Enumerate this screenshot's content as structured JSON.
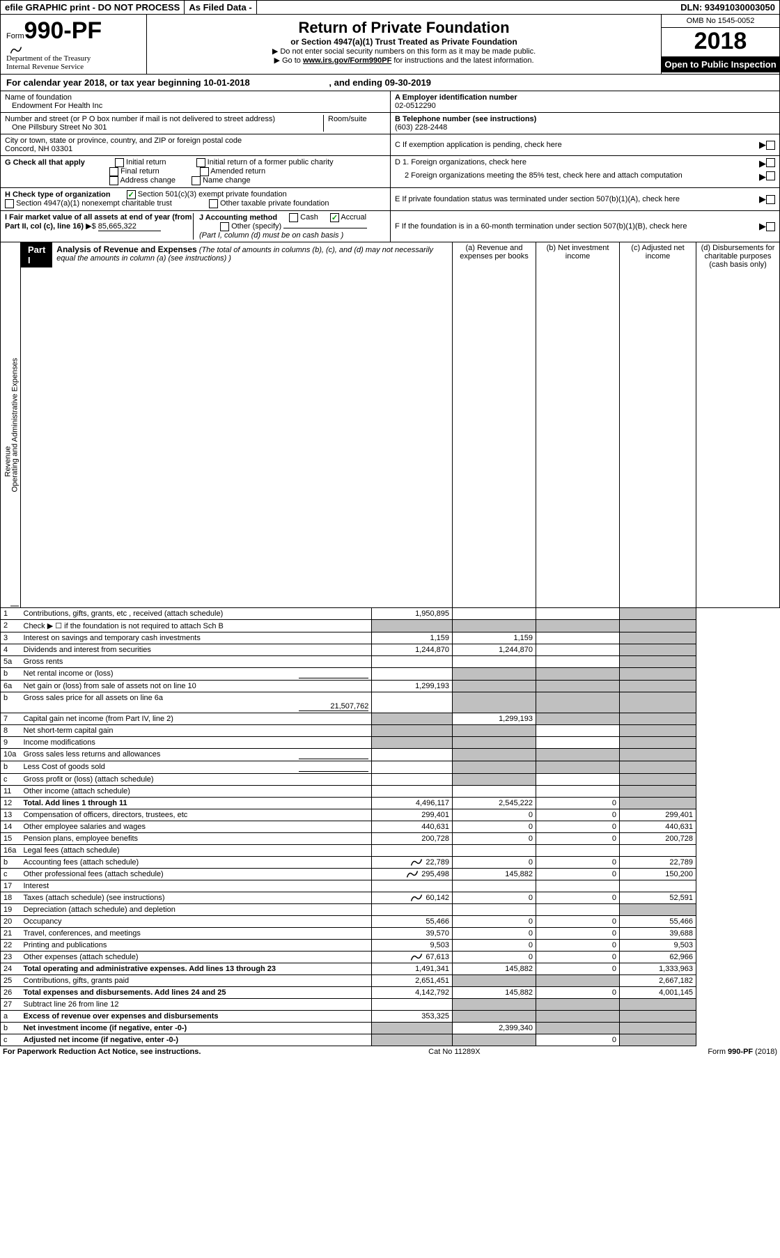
{
  "topbar": {
    "efile": "efile GRAPHIC print - DO NOT PROCESS",
    "asfiled": "As Filed Data -",
    "dln": "DLN: 93491030003050"
  },
  "header": {
    "form_label": "Form",
    "form_number": "990-PF",
    "dept1": "Department of the Treasury",
    "dept2": "Internal Revenue Service",
    "title": "Return of Private Foundation",
    "subtitle": "or Section 4947(a)(1) Trust Treated as Private Foundation",
    "instr1": "▶ Do not enter social security numbers on this form as it may be made public.",
    "instr2_pre": "▶ Go to ",
    "instr2_link": "www.irs.gov/Form990PF",
    "instr2_post": " for instructions and the latest information.",
    "omb": "OMB No 1545-0052",
    "year": "2018",
    "open": "Open to Public Inspection"
  },
  "calyear": {
    "text1": "For calendar year 2018, or tax year beginning 10-01-2018",
    "text2": ", and ending 09-30-2019"
  },
  "info": {
    "name_label": "Name of foundation",
    "name": "Endowment For Health Inc",
    "a_label": "A Employer identification number",
    "a_val": "02-0512290",
    "addr_label": "Number and street (or P O  box number if mail is not delivered to street address)",
    "room_label": "Room/suite",
    "addr": "One Pillsbury Street No 301",
    "b_label": "B Telephone number (see instructions)",
    "b_val": "(603) 228-2448",
    "city_label": "City or town, state or province, country, and ZIP or foreign postal code",
    "city": "Concord, NH  03301",
    "c_label": "C  If exemption application is pending, check here",
    "g_label": "G Check all that apply",
    "g_initial": "Initial return",
    "g_initial_former": "Initial return of a former public charity",
    "g_final": "Final return",
    "g_amended": "Amended return",
    "g_addr": "Address change",
    "g_name": "Name change",
    "d1": "D 1. Foreign organizations, check here",
    "d2": "2  Foreign organizations meeting the 85% test, check here and attach computation",
    "h_label": "H Check type of organization",
    "h_501": "Section 501(c)(3) exempt private foundation",
    "h_4947": "Section 4947(a)(1) nonexempt charitable trust",
    "h_other": "Other taxable private foundation",
    "e_label": "E  If private foundation status was terminated under section 507(b)(1)(A), check here",
    "i_label": "I Fair market value of all assets at end of year (from Part II, col  (c), line 16)",
    "i_val": "85,665,322",
    "j_label": "J Accounting method",
    "j_cash": "Cash",
    "j_accrual": "Accrual",
    "j_other": "Other (specify)",
    "j_note": "(Part I, column (d) must be on cash basis )",
    "f_label": "F  If the foundation is in a 60-month termination under section 507(b)(1)(B), check here"
  },
  "part1": {
    "label": "Part I",
    "title": "Analysis of Revenue and Expenses",
    "note": "(The total of amounts in columns (b), (c), and (d) may not necessarily equal the amounts in column (a) (see instructions) )",
    "col_a": "(a)   Revenue and expenses per books",
    "col_b": "(b)   Net investment income",
    "col_c": "(c)   Adjusted net income",
    "col_d": "(d)   Disbursements for charitable purposes (cash basis only)"
  },
  "sections": {
    "revenue": "Revenue",
    "expenses": "Operating and Administrative Expenses"
  },
  "rows": [
    {
      "section": "rev",
      "ln": "1",
      "desc": "Contributions, gifts, grants, etc , received (attach schedule)",
      "a": "1,950,895",
      "b": "",
      "c": "",
      "d": "",
      "dshade": true
    },
    {
      "section": "rev",
      "ln": "2",
      "desc": "Check ▶ ☐  if the foundation is not required to attach Sch  B",
      "a": "",
      "b": "",
      "c": "",
      "d": "",
      "allshade": true
    },
    {
      "section": "rev",
      "ln": "3",
      "desc": "Interest on savings and temporary cash investments",
      "a": "1,159",
      "b": "1,159",
      "c": "",
      "d": "",
      "dshade": true
    },
    {
      "section": "rev",
      "ln": "4",
      "desc": "Dividends and interest from securities",
      "a": "1,244,870",
      "b": "1,244,870",
      "c": "",
      "d": "",
      "dshade": true
    },
    {
      "section": "rev",
      "ln": "5a",
      "desc": "Gross rents",
      "a": "",
      "b": "",
      "c": "",
      "d": "",
      "dshade": true
    },
    {
      "section": "rev",
      "ln": "b",
      "desc": "Net rental income or (loss)",
      "inline": "",
      "a": "",
      "b": "",
      "c": "",
      "d": "",
      "bshade": true,
      "cshade": true,
      "dshade": true
    },
    {
      "section": "rev",
      "ln": "6a",
      "desc": "Net gain or (loss) from sale of assets not on line 10",
      "a": "1,299,193",
      "b": "",
      "c": "",
      "d": "",
      "bshade": true,
      "cshade": true,
      "dshade": true
    },
    {
      "section": "rev",
      "ln": "b",
      "desc": "Gross sales price for all assets on line 6a",
      "inline": "21,507,762",
      "a": "",
      "b": "",
      "c": "",
      "d": "",
      "bshade": true,
      "cshade": true,
      "dshade": true
    },
    {
      "section": "rev",
      "ln": "7",
      "desc": "Capital gain net income (from Part IV, line 2)",
      "a": "",
      "b": "1,299,193",
      "c": "",
      "d": "",
      "ashade": true,
      "cshade": true,
      "dshade": true
    },
    {
      "section": "rev",
      "ln": "8",
      "desc": "Net short-term capital gain",
      "a": "",
      "b": "",
      "c": "",
      "d": "",
      "ashade": true,
      "bshade": true,
      "dshade": true
    },
    {
      "section": "rev",
      "ln": "9",
      "desc": "Income modifications",
      "a": "",
      "b": "",
      "c": "",
      "d": "",
      "ashade": true,
      "bshade": true,
      "dshade": true
    },
    {
      "section": "rev",
      "ln": "10a",
      "desc": "Gross sales less returns and allowances",
      "inline": "",
      "a": "",
      "b": "",
      "c": "",
      "d": "",
      "bshade": true,
      "cshade": true,
      "dshade": true
    },
    {
      "section": "rev",
      "ln": "b",
      "desc": "Less  Cost of goods sold",
      "inline": "",
      "a": "",
      "b": "",
      "c": "",
      "d": "",
      "bshade": true,
      "cshade": true,
      "dshade": true
    },
    {
      "section": "rev",
      "ln": "c",
      "desc": "Gross profit or (loss) (attach schedule)",
      "a": "",
      "b": "",
      "c": "",
      "d": "",
      "bshade": true,
      "dshade": true
    },
    {
      "section": "rev",
      "ln": "11",
      "desc": "Other income (attach schedule)",
      "a": "",
      "b": "",
      "c": "",
      "d": "",
      "dshade": true
    },
    {
      "section": "rev",
      "ln": "12",
      "desc": "Total. Add lines 1 through 11",
      "bold": true,
      "a": "4,496,117",
      "b": "2,545,222",
      "c": "0",
      "d": "",
      "dshade": true
    },
    {
      "section": "exp",
      "ln": "13",
      "desc": "Compensation of officers, directors, trustees, etc",
      "a": "299,401",
      "b": "0",
      "c": "0",
      "d": "299,401"
    },
    {
      "section": "exp",
      "ln": "14",
      "desc": "Other employee salaries and wages",
      "a": "440,631",
      "b": "0",
      "c": "0",
      "d": "440,631"
    },
    {
      "section": "exp",
      "ln": "15",
      "desc": "Pension plans, employee benefits",
      "a": "200,728",
      "b": "0",
      "c": "0",
      "d": "200,728"
    },
    {
      "section": "exp",
      "ln": "16a",
      "desc": "Legal fees (attach schedule)",
      "a": "",
      "b": "",
      "c": "",
      "d": ""
    },
    {
      "section": "exp",
      "ln": "b",
      "desc": "Accounting fees (attach schedule)",
      "icon": true,
      "a": "22,789",
      "b": "0",
      "c": "0",
      "d": "22,789"
    },
    {
      "section": "exp",
      "ln": "c",
      "desc": "Other professional fees (attach schedule)",
      "icon": true,
      "a": "295,498",
      "b": "145,882",
      "c": "0",
      "d": "150,200"
    },
    {
      "section": "exp",
      "ln": "17",
      "desc": "Interest",
      "a": "",
      "b": "",
      "c": "",
      "d": ""
    },
    {
      "section": "exp",
      "ln": "18",
      "desc": "Taxes (attach schedule) (see instructions)",
      "icon": true,
      "a": "60,142",
      "b": "0",
      "c": "0",
      "d": "52,591"
    },
    {
      "section": "exp",
      "ln": "19",
      "desc": "Depreciation (attach schedule) and depletion",
      "a": "",
      "b": "",
      "c": "",
      "d": "",
      "dshade": true
    },
    {
      "section": "exp",
      "ln": "20",
      "desc": "Occupancy",
      "a": "55,466",
      "b": "0",
      "c": "0",
      "d": "55,466"
    },
    {
      "section": "exp",
      "ln": "21",
      "desc": "Travel, conferences, and meetings",
      "a": "39,570",
      "b": "0",
      "c": "0",
      "d": "39,688"
    },
    {
      "section": "exp",
      "ln": "22",
      "desc": "Printing and publications",
      "a": "9,503",
      "b": "0",
      "c": "0",
      "d": "9,503"
    },
    {
      "section": "exp",
      "ln": "23",
      "desc": "Other expenses (attach schedule)",
      "icon": true,
      "a": "67,613",
      "b": "0",
      "c": "0",
      "d": "62,966"
    },
    {
      "section": "exp",
      "ln": "24",
      "desc": "Total operating and administrative expenses. Add lines 13 through 23",
      "bold": true,
      "a": "1,491,341",
      "b": "145,882",
      "c": "0",
      "d": "1,333,963"
    },
    {
      "section": "exp",
      "ln": "25",
      "desc": "Contributions, gifts, grants paid",
      "a": "2,651,451",
      "b": "",
      "c": "",
      "d": "2,667,182",
      "bshade": true,
      "cshade": true
    },
    {
      "section": "exp",
      "ln": "26",
      "desc": "Total expenses and disbursements. Add lines 24 and 25",
      "bold": true,
      "a": "4,142,792",
      "b": "145,882",
      "c": "0",
      "d": "4,001,145"
    },
    {
      "section": "exp",
      "ln": "27",
      "desc": "Subtract line 26 from line 12",
      "a": "",
      "b": "",
      "c": "",
      "d": "",
      "allshade_bcde": true
    },
    {
      "section": "exp",
      "ln": "a",
      "desc": "Excess of revenue over expenses and disbursements",
      "bold": true,
      "a": "353,325",
      "b": "",
      "c": "",
      "d": "",
      "bshade": true,
      "cshade": true,
      "dshade": true
    },
    {
      "section": "exp",
      "ln": "b",
      "desc": "Net investment income (if negative, enter -0-)",
      "bold": true,
      "a": "",
      "b": "2,399,340",
      "c": "",
      "d": "",
      "ashade": true,
      "cshade": true,
      "dshade": true
    },
    {
      "section": "exp",
      "ln": "c",
      "desc": "Adjusted net income (if negative, enter -0-)",
      "bold": true,
      "a": "",
      "b": "",
      "c": "0",
      "d": "",
      "ashade": true,
      "bshade": true,
      "dshade": true
    }
  ],
  "footer": {
    "left": "For Paperwork Reduction Act Notice, see instructions.",
    "mid": "Cat No  11289X",
    "right": "Form 990-PF (2018)"
  }
}
